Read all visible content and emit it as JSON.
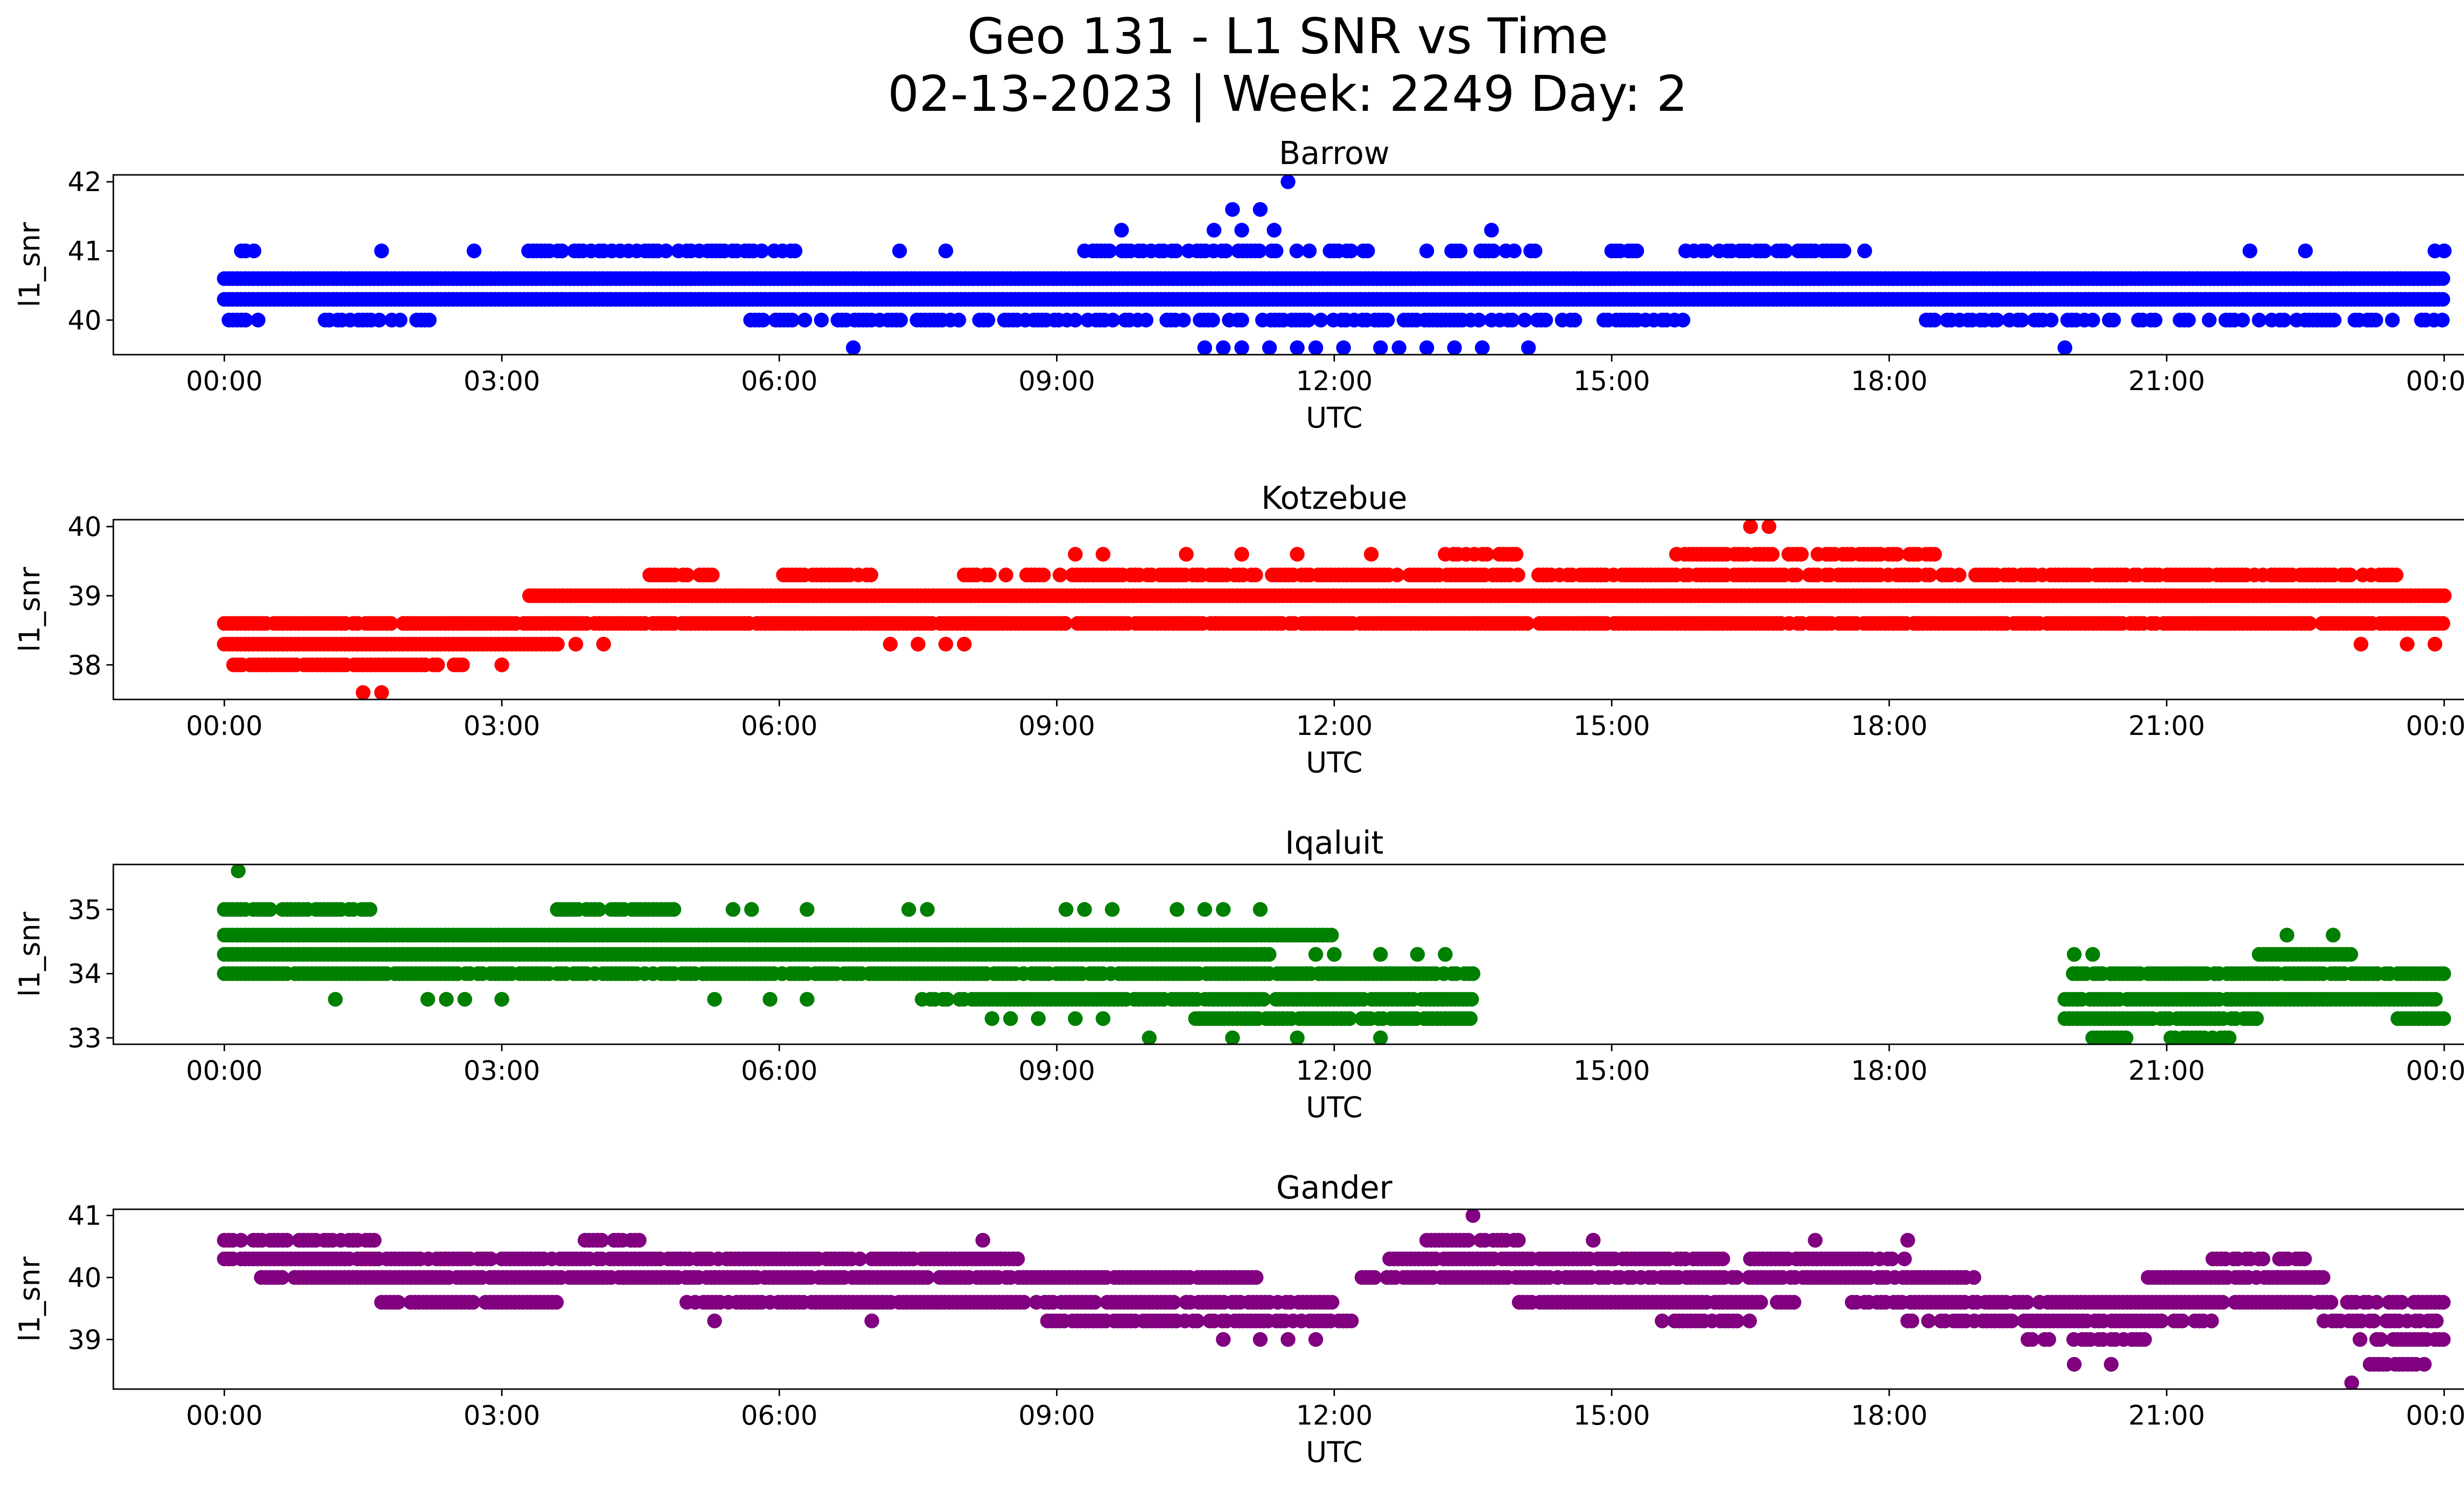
{
  "figure": {
    "title_line1": "Geo 131 - L1 SNR vs Time",
    "title_line2": "02-13-2023 | Week: 2249 Day: 2"
  },
  "chart_data": [
    {
      "type": "scatter",
      "title": "Barrow",
      "xlabel": "UTC",
      "ylabel": "l1_snr",
      "color": "#0000ff",
      "x_unit": "hours UTC",
      "xlim": [
        -1.2,
        25.2
      ],
      "ylim": [
        39.5,
        42.1
      ],
      "xticks": [
        "00:00",
        "03:00",
        "06:00",
        "09:00",
        "12:00",
        "15:00",
        "18:00",
        "21:00",
        "00:00"
      ],
      "yticks": [
        40,
        41,
        42
      ],
      "bands": [
        {
          "y": 40.6,
          "ranges": [
            [
              0.0,
              24.0
            ]
          ],
          "density": 1.0
        },
        {
          "y": 40.3,
          "ranges": [
            [
              0.0,
              24.0
            ]
          ],
          "density": 1.0
        },
        {
          "y": 40.0,
          "ranges": [
            [
              0.05,
              0.45
            ],
            [
              1.0,
              2.3
            ],
            [
              5.6,
              15.8
            ],
            [
              18.4,
              24.0
            ]
          ],
          "density": 0.55
        },
        {
          "y": 41.0,
          "ranges": [
            [
              0.05,
              0.45
            ],
            [
              3.2,
              6.2
            ],
            [
              9.3,
              12.4
            ],
            [
              13.0,
              14.2
            ],
            [
              15.0,
              15.4
            ],
            [
              15.8,
              17.8
            ]
          ],
          "density": 0.55
        }
      ],
      "points": [
        [
          11.5,
          42.0
        ],
        [
          10.9,
          41.6
        ],
        [
          11.2,
          41.6
        ],
        [
          10.7,
          41.3
        ],
        [
          11.0,
          41.3
        ],
        [
          11.35,
          41.3
        ],
        [
          9.7,
          41.3
        ],
        [
          13.7,
          41.3
        ],
        [
          6.8,
          39.6
        ],
        [
          10.6,
          39.6
        ],
        [
          10.8,
          39.6
        ],
        [
          11.0,
          39.6
        ],
        [
          11.3,
          39.6
        ],
        [
          11.6,
          39.6
        ],
        [
          11.8,
          39.6
        ],
        [
          12.1,
          39.6
        ],
        [
          12.5,
          39.6
        ],
        [
          12.7,
          39.6
        ],
        [
          13.0,
          39.6
        ],
        [
          13.3,
          39.6
        ],
        [
          13.6,
          39.6
        ],
        [
          14.1,
          39.6
        ],
        [
          19.9,
          39.6
        ],
        [
          1.7,
          41.0
        ],
        [
          2.7,
          41.0
        ],
        [
          7.3,
          41.0
        ],
        [
          7.8,
          41.0
        ],
        [
          21.9,
          41.0
        ],
        [
          22.5,
          41.0
        ],
        [
          23.9,
          41.0
        ],
        [
          24.0,
          41.0
        ]
      ],
      "series_points_count": "dense"
    },
    {
      "type": "scatter",
      "title": "Kotzebue",
      "xlabel": "UTC",
      "ylabel": "l1_snr",
      "color": "#ff0000",
      "x_unit": "hours UTC",
      "xlim": [
        -1.2,
        25.2
      ],
      "ylim": [
        37.5,
        40.1
      ],
      "xticks": [
        "00:00",
        "03:00",
        "06:00",
        "09:00",
        "12:00",
        "15:00",
        "18:00",
        "21:00",
        "00:00"
      ],
      "yticks": [
        38,
        39,
        40
      ],
      "bands": [
        {
          "y": 38.6,
          "ranges": [
            [
              0.0,
              24.0
            ]
          ],
          "density": 0.95
        },
        {
          "y": 38.3,
          "ranges": [
            [
              0.0,
              3.6
            ]
          ],
          "density": 1.0
        },
        {
          "y": 38.0,
          "ranges": [
            [
              0.1,
              2.6
            ]
          ],
          "density": 0.9
        },
        {
          "y": 39.0,
          "ranges": [
            [
              3.3,
              24.0
            ]
          ],
          "density": 1.0
        },
        {
          "y": 39.3,
          "ranges": [
            [
              4.6,
              5.3
            ],
            [
              6.0,
              7.0
            ],
            [
              8.0,
              23.5
            ]
          ],
          "density": 0.8
        },
        {
          "y": 39.6,
          "ranges": [
            [
              13.2,
              14.0
            ],
            [
              15.7,
              18.5
            ]
          ],
          "density": 0.8
        }
      ],
      "points": [
        [
          16.5,
          40.0
        ],
        [
          16.7,
          40.0
        ],
        [
          9.2,
          39.6
        ],
        [
          9.5,
          39.6
        ],
        [
          10.4,
          39.6
        ],
        [
          11.0,
          39.6
        ],
        [
          11.6,
          39.6
        ],
        [
          12.4,
          39.6
        ],
        [
          1.5,
          37.6
        ],
        [
          1.7,
          37.6
        ],
        [
          3.0,
          38.0
        ],
        [
          3.8,
          38.3
        ],
        [
          4.1,
          38.3
        ],
        [
          7.2,
          38.3
        ],
        [
          7.5,
          38.3
        ],
        [
          7.8,
          38.3
        ],
        [
          8.0,
          38.3
        ],
        [
          23.1,
          38.3
        ],
        [
          23.6,
          38.3
        ],
        [
          23.9,
          38.3
        ],
        [
          14.7,
          38.6
        ],
        [
          18.3,
          38.6
        ],
        [
          10.4,
          38.6
        ]
      ],
      "series_points_count": "dense"
    },
    {
      "type": "scatter",
      "title": "Iqaluit",
      "xlabel": "UTC",
      "ylabel": "l1_snr",
      "color": "#008000",
      "x_unit": "hours UTC",
      "xlim": [
        -1.2,
        25.2
      ],
      "ylim": [
        32.9,
        35.7
      ],
      "xticks": [
        "00:00",
        "03:00",
        "06:00",
        "09:00",
        "12:00",
        "15:00",
        "18:00",
        "21:00",
        "00:00"
      ],
      "yticks": [
        33,
        34,
        35
      ],
      "bands": [
        {
          "y": 34.6,
          "ranges": [
            [
              0.0,
              12.0
            ]
          ],
          "density": 1.0
        },
        {
          "y": 34.3,
          "ranges": [
            [
              0.0,
              11.3
            ],
            [
              22.0,
              23.0
            ]
          ],
          "density": 1.0
        },
        {
          "y": 34.0,
          "ranges": [
            [
              0.0,
              13.5
            ],
            [
              19.9,
              24.0
            ]
          ],
          "density": 0.9
        },
        {
          "y": 33.6,
          "ranges": [
            [
              7.5,
              13.5
            ],
            [
              19.9,
              24.0
            ]
          ],
          "density": 0.9
        },
        {
          "y": 33.3,
          "ranges": [
            [
              10.5,
              13.5
            ],
            [
              19.9,
              22.0
            ],
            [
              23.5,
              24.0
            ]
          ],
          "density": 0.9
        },
        {
          "y": 35.0,
          "ranges": [
            [
              0.0,
              1.6
            ],
            [
              3.6,
              4.9
            ]
          ],
          "density": 0.85
        },
        {
          "y": 33.0,
          "ranges": [
            [
              20.2,
              20.6
            ],
            [
              21.0,
              21.7
            ]
          ],
          "density": 0.9
        }
      ],
      "points": [
        [
          0.15,
          35.6
        ],
        [
          5.5,
          35.0
        ],
        [
          5.7,
          35.0
        ],
        [
          6.3,
          35.0
        ],
        [
          7.4,
          35.0
        ],
        [
          7.6,
          35.0
        ],
        [
          9.1,
          35.0
        ],
        [
          9.3,
          35.0
        ],
        [
          9.6,
          35.0
        ],
        [
          10.3,
          35.0
        ],
        [
          10.6,
          35.0
        ],
        [
          10.8,
          35.0
        ],
        [
          11.2,
          35.0
        ],
        [
          22.3,
          34.6
        ],
        [
          22.8,
          34.6
        ],
        [
          20.0,
          34.3
        ],
        [
          20.2,
          34.3
        ],
        [
          11.8,
          34.3
        ],
        [
          12.0,
          34.3
        ],
        [
          12.5,
          34.3
        ],
        [
          12.9,
          34.3
        ],
        [
          13.2,
          34.3
        ],
        [
          1.2,
          33.6
        ],
        [
          2.2,
          33.6
        ],
        [
          2.4,
          33.6
        ],
        [
          2.6,
          33.6
        ],
        [
          3.0,
          33.6
        ],
        [
          5.3,
          33.6
        ],
        [
          5.9,
          33.6
        ],
        [
          6.3,
          33.6
        ],
        [
          8.3,
          33.3
        ],
        [
          8.5,
          33.3
        ],
        [
          8.8,
          33.3
        ],
        [
          9.2,
          33.3
        ],
        [
          9.5,
          33.3
        ],
        [
          10.0,
          33.0
        ],
        [
          10.9,
          33.0
        ],
        [
          11.6,
          33.0
        ],
        [
          12.5,
          33.0
        ]
      ],
      "series_points_count": "dense"
    },
    {
      "type": "scatter",
      "title": "Gander",
      "xlabel": "UTC",
      "ylabel": "l1_snr",
      "color": "#800080",
      "x_unit": "hours UTC",
      "xlim": [
        -1.2,
        25.2
      ],
      "ylim": [
        38.2,
        41.1
      ],
      "xticks": [
        "00:00",
        "03:00",
        "06:00",
        "09:00",
        "12:00",
        "15:00",
        "18:00",
        "21:00",
        "00:00"
      ],
      "yticks": [
        39,
        40,
        41
      ],
      "bands": [
        {
          "y": 40.6,
          "ranges": [
            [
              0.0,
              1.7
            ],
            [
              3.9,
              4.5
            ],
            [
              13.0,
              14.0
            ]
          ],
          "density": 0.8
        },
        {
          "y": 40.3,
          "ranges": [
            [
              0.0,
              2.9
            ],
            [
              3.0,
              6.9
            ],
            [
              7.0,
              8.6
            ],
            [
              12.6,
              16.2
            ],
            [
              16.5,
              18.2
            ],
            [
              21.5,
              22.5
            ]
          ],
          "density": 0.9
        },
        {
          "y": 40.0,
          "ranges": [
            [
              0.4,
              11.2
            ],
            [
              12.3,
              19.0
            ],
            [
              20.8,
              22.7
            ]
          ],
          "density": 0.9
        },
        {
          "y": 39.6,
          "ranges": [
            [
              1.7,
              3.6
            ],
            [
              5.0,
              12.0
            ],
            [
              14.0,
              17.0
            ],
            [
              17.6,
              24.0
            ]
          ],
          "density": 0.9
        },
        {
          "y": 39.3,
          "ranges": [
            [
              8.9,
              12.2
            ],
            [
              15.5,
              16.5
            ],
            [
              18.2,
              21.5
            ],
            [
              22.7,
              24.0
            ]
          ],
          "density": 0.75
        },
        {
          "y": 39.0,
          "ranges": [
            [
              19.5,
              20.8
            ],
            [
              23.0,
              24.0
            ]
          ],
          "density": 0.7
        },
        {
          "y": 38.6,
          "ranges": [
            [
              23.2,
              23.8
            ]
          ],
          "density": 0.8
        }
      ],
      "points": [
        [
          13.5,
          41.0
        ],
        [
          23.0,
          38.3
        ],
        [
          5.3,
          39.3
        ],
        [
          7.0,
          39.3
        ],
        [
          20.0,
          38.6
        ],
        [
          20.4,
          38.6
        ],
        [
          10.8,
          39.0
        ],
        [
          11.2,
          39.0
        ],
        [
          11.5,
          39.0
        ],
        [
          11.8,
          39.0
        ],
        [
          8.2,
          40.6
        ],
        [
          18.2,
          40.6
        ],
        [
          14.8,
          40.6
        ],
        [
          17.2,
          40.6
        ]
      ],
      "series_points_count": "dense"
    }
  ]
}
